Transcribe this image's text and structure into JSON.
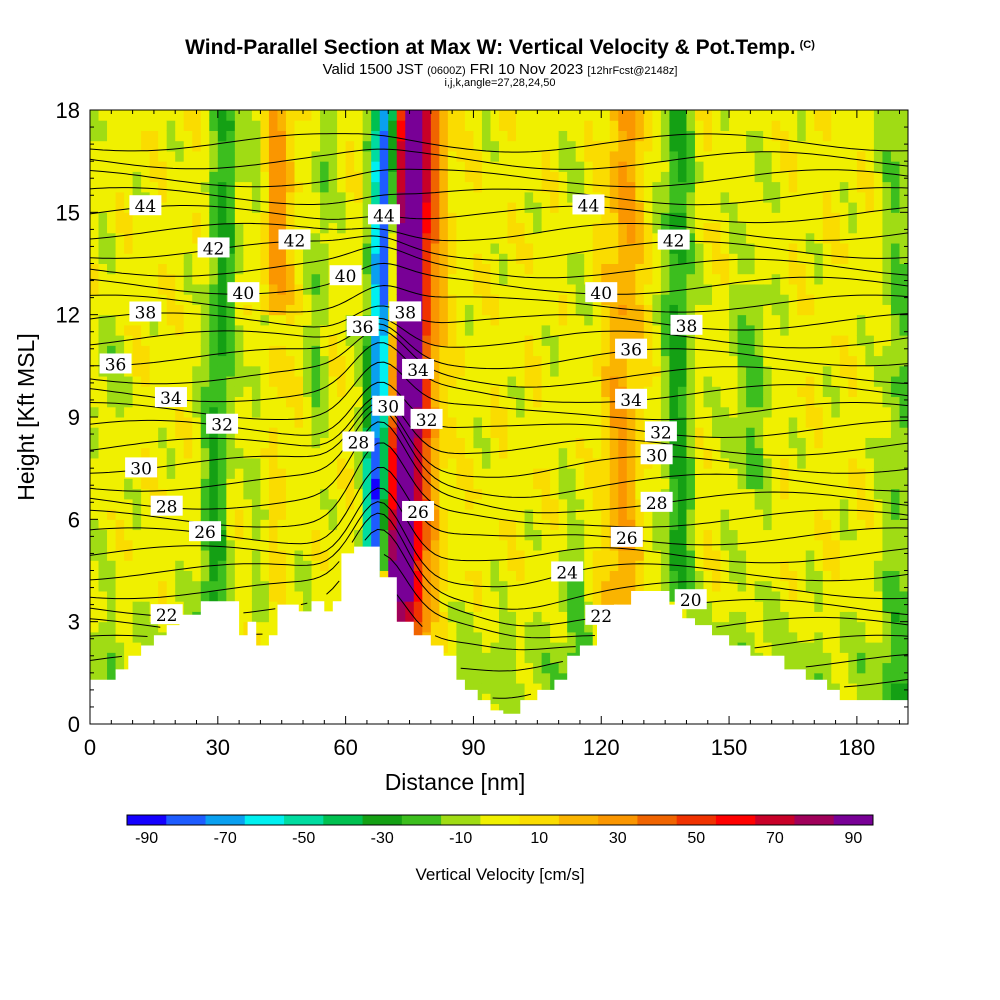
{
  "header": {
    "title": "Wind-Parallel Section at Max W: Vertical Velocity & Pot.Temp.",
    "title_tag": "(C)",
    "valid_prefix": "Valid 1500 JST",
    "valid_utc": "(0600Z)",
    "valid_date": "FRI 10 Nov 2023",
    "forecast_info": "[12hrFcst@2148z]",
    "indices": "i,j,k,angle=27,28,24,50"
  },
  "chart_data": {
    "type": "heatmap",
    "xlabel": "Distance [nm]",
    "ylabel": "Height [Kft MSL]",
    "xlim": [
      0,
      192
    ],
    "ylim": [
      0,
      18
    ],
    "x_ticks": [
      0,
      30,
      60,
      90,
      120,
      150,
      180
    ],
    "y_ticks": [
      0,
      3,
      6,
      9,
      12,
      15,
      18
    ],
    "fill_variable": "Vertical Velocity [cm/s]",
    "colorbar": {
      "title": "Vertical Velocity [cm/s]",
      "tick_labels": [
        "-90",
        "-70",
        "-50",
        "-30",
        "-10",
        "10",
        "30",
        "50",
        "70",
        "90"
      ],
      "colors": [
        "#1400ff",
        "#1e5cff",
        "#0aa0f0",
        "#00f0f0",
        "#00dca0",
        "#00c050",
        "#14a014",
        "#3cbe1e",
        "#a0dc14",
        "#f0f000",
        "#fadc00",
        "#fab400",
        "#fa9600",
        "#f06400",
        "#f03200",
        "#ff0000",
        "#c80028",
        "#a0005a",
        "#780096"
      ]
    },
    "contour_variable": "Potential Temperature (C)",
    "contour_levels": [
      20,
      22,
      24,
      26,
      28,
      30,
      32,
      34,
      36,
      38,
      40,
      42,
      44
    ],
    "terrain": [
      [
        0,
        1.3
      ],
      [
        6,
        1.3
      ],
      [
        6,
        1.6
      ],
      [
        9,
        1.6
      ],
      [
        9,
        2.0
      ],
      [
        12,
        2.0
      ],
      [
        12,
        2.3
      ],
      [
        15,
        2.3
      ],
      [
        15,
        2.6
      ],
      [
        18,
        2.6
      ],
      [
        18,
        2.9
      ],
      [
        21,
        2.9
      ],
      [
        21,
        3.2
      ],
      [
        26,
        3.2
      ],
      [
        26,
        3.6
      ],
      [
        35,
        3.6
      ],
      [
        35,
        2.6
      ],
      [
        37,
        2.6
      ],
      [
        37,
        3.0
      ],
      [
        39,
        3.0
      ],
      [
        39,
        2.3
      ],
      [
        42,
        2.3
      ],
      [
        42,
        2.6
      ],
      [
        44,
        2.6
      ],
      [
        44,
        3.5
      ],
      [
        49,
        3.5
      ],
      [
        49,
        3.3
      ],
      [
        52,
        3.3
      ],
      [
        52,
        3.6
      ],
      [
        55,
        3.6
      ],
      [
        55,
        3.3
      ],
      [
        57,
        3.3
      ],
      [
        57,
        3.6
      ],
      [
        59,
        3.6
      ],
      [
        59,
        5.0
      ],
      [
        62,
        5.0
      ],
      [
        62,
        5.2
      ],
      [
        68,
        5.2
      ],
      [
        68,
        4.3
      ],
      [
        72,
        4.3
      ],
      [
        72,
        3.0
      ],
      [
        76,
        3.0
      ],
      [
        76,
        2.6
      ],
      [
        80,
        2.6
      ],
      [
        80,
        2.3
      ],
      [
        83,
        2.3
      ],
      [
        83,
        2.0
      ],
      [
        86,
        2.0
      ],
      [
        86,
        1.3
      ],
      [
        88,
        1.3
      ],
      [
        88,
        1.0
      ],
      [
        91,
        1.0
      ],
      [
        91,
        0.7
      ],
      [
        94,
        0.7
      ],
      [
        94,
        0.4
      ],
      [
        97,
        0.4
      ],
      [
        97,
        0.3
      ],
      [
        101,
        0.3
      ],
      [
        101,
        0.7
      ],
      [
        105,
        0.7
      ],
      [
        105,
        1.0
      ],
      [
        109,
        1.0
      ],
      [
        109,
        1.3
      ],
      [
        112,
        1.3
      ],
      [
        112,
        2.0
      ],
      [
        115,
        2.0
      ],
      [
        115,
        2.3
      ],
      [
        119,
        2.3
      ],
      [
        119,
        3.0
      ],
      [
        123,
        3.0
      ],
      [
        123,
        3.5
      ],
      [
        127,
        3.5
      ],
      [
        127,
        3.9
      ],
      [
        136,
        3.9
      ],
      [
        136,
        3.5
      ],
      [
        139,
        3.5
      ],
      [
        139,
        3.1
      ],
      [
        142,
        3.1
      ],
      [
        142,
        2.9
      ],
      [
        146,
        2.9
      ],
      [
        146,
        2.6
      ],
      [
        150,
        2.6
      ],
      [
        150,
        2.3
      ],
      [
        155,
        2.3
      ],
      [
        155,
        2.0
      ],
      [
        163,
        2.0
      ],
      [
        163,
        1.6
      ],
      [
        168,
        1.6
      ],
      [
        168,
        1.3
      ],
      [
        173,
        1.3
      ],
      [
        173,
        1.0
      ],
      [
        176,
        1.0
      ],
      [
        176,
        0.7
      ],
      [
        183,
        0.7
      ],
      [
        183,
        0.7
      ],
      [
        192,
        0.7
      ]
    ]
  }
}
